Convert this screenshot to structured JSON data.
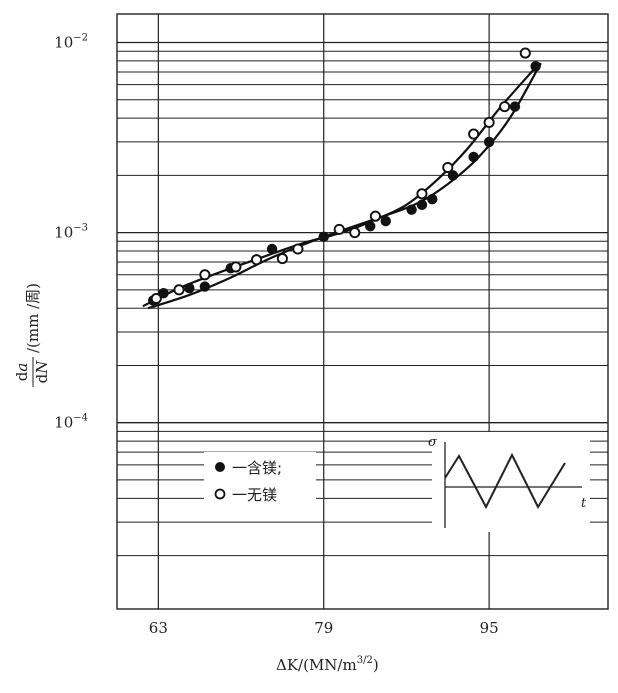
{
  "chart_data": {
    "type": "scatter",
    "x_ticks": [
      {
        "value": 63,
        "label": "63"
      },
      {
        "value": 79,
        "label": "79"
      },
      {
        "value": 95,
        "label": "95"
      }
    ],
    "xlim": [
      59,
      106.5
    ],
    "ylim_log10": [
      -4.98,
      -1.85
    ],
    "y_scale": "log",
    "y_ticks": [
      {
        "value": 0.01,
        "mantissa": "10",
        "exponent": "−2"
      },
      {
        "value": 0.001,
        "mantissa": "10",
        "exponent": "−3"
      },
      {
        "value": 0.0001,
        "mantissa": "10",
        "exponent": "−4"
      }
    ],
    "xlabel": {
      "pre": "ΔK/(MN/m",
      "sup": "3/2",
      "post": ")"
    },
    "ylabel": {
      "numerator_d": "d",
      "numerator_var": "a",
      "denominator_d": "d",
      "denominator_var": "N",
      "unit": "/(mm /周)"
    },
    "grid": "log horizontal gridlines, vertical lines at 63, 79, 95",
    "series": [
      {
        "name": "一含镁;",
        "marker": "filled-circle",
        "points": [
          [
            62.5,
            0.00044
          ],
          [
            63.5,
            0.00048
          ],
          [
            66,
            0.00051
          ],
          [
            67.5,
            0.00052
          ],
          [
            70,
            0.00065
          ],
          [
            74,
            0.00082
          ],
          [
            79,
            0.00095
          ],
          [
            83.5,
            0.00108
          ],
          [
            85,
            0.00115
          ],
          [
            87.5,
            0.00132
          ],
          [
            88.5,
            0.0014
          ],
          [
            89.5,
            0.0015
          ],
          [
            91.5,
            0.002
          ],
          [
            93.5,
            0.0025
          ],
          [
            95,
            0.003
          ],
          [
            97.5,
            0.0046
          ],
          [
            99.5,
            0.0075
          ]
        ],
        "curve": [
          [
            62,
            0.0004
          ],
          [
            66,
            0.00047
          ],
          [
            70,
            0.00058
          ],
          [
            74,
            0.00074
          ],
          [
            79,
            0.00095
          ],
          [
            84,
            0.00118
          ],
          [
            88,
            0.00142
          ],
          [
            91,
            0.0018
          ],
          [
            94,
            0.0025
          ],
          [
            97,
            0.004
          ],
          [
            100,
            0.0078
          ]
        ]
      },
      {
        "name": "一无镁",
        "marker": "open-circle",
        "points": [
          [
            62.8,
            0.00045
          ],
          [
            65,
            0.0005
          ],
          [
            67.5,
            0.0006
          ],
          [
            70.5,
            0.00066
          ],
          [
            72.5,
            0.00072
          ],
          [
            75,
            0.00073
          ],
          [
            76.5,
            0.00082
          ],
          [
            80.5,
            0.00104
          ],
          [
            82,
            0.001
          ],
          [
            84,
            0.00122
          ],
          [
            88.5,
            0.0016
          ],
          [
            91,
            0.0022
          ],
          [
            93.5,
            0.0033
          ],
          [
            95,
            0.0038
          ],
          [
            96.5,
            0.0046
          ],
          [
            98.5,
            0.0088
          ]
        ],
        "curve": [
          [
            61.5,
            0.00041
          ],
          [
            65,
            0.00051
          ],
          [
            69,
            0.00062
          ],
          [
            73,
            0.00074
          ],
          [
            77,
            0.00088
          ],
          [
            81,
            0.00101
          ],
          [
            84,
            0.00117
          ],
          [
            87,
            0.0014
          ],
          [
            90,
            0.0019
          ],
          [
            93,
            0.0028
          ],
          [
            96,
            0.0045
          ],
          [
            99.5,
            0.0074
          ]
        ]
      }
    ],
    "inset": {
      "y_label": "σ",
      "x_label": "t",
      "description": "triangular load waveform"
    }
  }
}
